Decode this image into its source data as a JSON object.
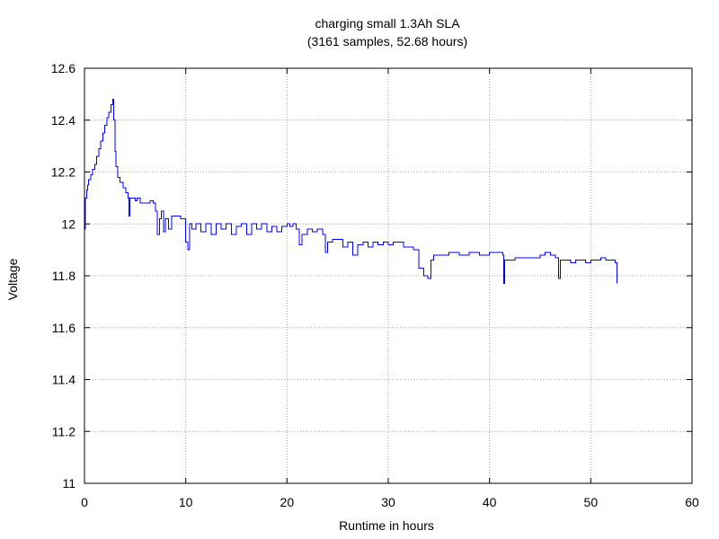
{
  "chart_data": {
    "type": "line",
    "title": "charging small 1.3Ah SLA",
    "subtitle": "(3161 samples, 52.68 hours)",
    "xlabel": "Runtime in hours",
    "ylabel": "Voltage",
    "xlim": [
      0,
      60
    ],
    "ylim": [
      11,
      12.6
    ],
    "xticks": [
      0,
      10,
      20,
      30,
      40,
      50,
      60
    ],
    "xtick_labels": [
      "0",
      "10",
      "20",
      "30",
      "40",
      "50",
      "60"
    ],
    "yticks": [
      11,
      11.2,
      11.4,
      11.6,
      11.8,
      12,
      12.2,
      12.4,
      12.6
    ],
    "ytick_labels": [
      "11",
      "11.2",
      "11.4",
      "11.6",
      "11.8",
      "12",
      "12.2",
      "12.4",
      "12.6"
    ],
    "grid": true,
    "legend": "none",
    "series": [
      {
        "color": "#0000ff",
        "points": [
          [
            0.0,
            11.98
          ],
          [
            0.1,
            12.1
          ],
          [
            0.2,
            12.13
          ],
          [
            0.3,
            12.15
          ],
          [
            0.4,
            12.17
          ],
          [
            0.6,
            12.19
          ],
          [
            0.8,
            12.21
          ],
          [
            1.0,
            12.23
          ],
          [
            1.2,
            12.26
          ],
          [
            1.4,
            12.29
          ],
          [
            1.6,
            12.32
          ],
          [
            1.8,
            12.35
          ],
          [
            2.0,
            12.38
          ],
          [
            2.2,
            12.41
          ],
          [
            2.4,
            12.43
          ],
          [
            2.6,
            12.46
          ],
          [
            2.8,
            12.48
          ],
          [
            2.9,
            12.4
          ],
          [
            3.0,
            12.28
          ],
          [
            3.1,
            12.22
          ],
          [
            3.3,
            12.18
          ],
          [
            3.5,
            12.16
          ],
          [
            3.8,
            12.14
          ],
          [
            4.1,
            12.12
          ],
          [
            4.3,
            12.1
          ],
          [
            4.4,
            12.03
          ],
          [
            4.5,
            12.1
          ],
          [
            5.0,
            12.09
          ],
          [
            5.2,
            12.1
          ],
          [
            5.5,
            12.08
          ],
          [
            6.0,
            12.08
          ],
          [
            6.5,
            12.09
          ],
          [
            6.8,
            12.08
          ],
          [
            7.0,
            12.05
          ],
          [
            7.2,
            11.96
          ],
          [
            7.4,
            12.02
          ],
          [
            7.6,
            12.05
          ],
          [
            7.8,
            11.97
          ],
          [
            8.0,
            12.02
          ],
          [
            8.3,
            11.98
          ],
          [
            8.6,
            12.03
          ],
          [
            9.0,
            12.03
          ],
          [
            9.5,
            12.02
          ],
          [
            9.8,
            12.02
          ],
          [
            10.0,
            11.93
          ],
          [
            10.2,
            11.9
          ],
          [
            10.4,
            12.0
          ],
          [
            10.6,
            11.98
          ],
          [
            11.0,
            12.0
          ],
          [
            11.5,
            11.97
          ],
          [
            12.0,
            12.0
          ],
          [
            12.5,
            11.96
          ],
          [
            13.0,
            12.0
          ],
          [
            13.5,
            11.98
          ],
          [
            14.0,
            12.0
          ],
          [
            14.5,
            11.96
          ],
          [
            15.0,
            11.99
          ],
          [
            15.5,
            12.0
          ],
          [
            16.0,
            11.96
          ],
          [
            16.5,
            12.0
          ],
          [
            17.0,
            11.98
          ],
          [
            17.5,
            12.0
          ],
          [
            18.0,
            11.97
          ],
          [
            18.5,
            11.99
          ],
          [
            19.0,
            11.97
          ],
          [
            19.5,
            11.99
          ],
          [
            20.0,
            12.0
          ],
          [
            20.3,
            11.99
          ],
          [
            20.6,
            12.0
          ],
          [
            20.9,
            11.98
          ],
          [
            21.0,
            11.98
          ],
          [
            21.2,
            11.92
          ],
          [
            21.5,
            11.96
          ],
          [
            22.0,
            11.98
          ],
          [
            22.5,
            11.97
          ],
          [
            23.0,
            11.98
          ],
          [
            23.5,
            11.96
          ],
          [
            23.8,
            11.89
          ],
          [
            24.0,
            11.93
          ],
          [
            24.5,
            11.94
          ],
          [
            25.0,
            11.94
          ],
          [
            25.5,
            11.91
          ],
          [
            26.0,
            11.93
          ],
          [
            26.5,
            11.88
          ],
          [
            27.0,
            11.92
          ],
          [
            27.5,
            11.93
          ],
          [
            28.0,
            11.91
          ],
          [
            28.5,
            11.93
          ],
          [
            29.0,
            11.92
          ],
          [
            29.5,
            11.93
          ],
          [
            30.0,
            11.92
          ],
          [
            30.5,
            11.93
          ],
          [
            31.0,
            11.93
          ],
          [
            31.5,
            11.91
          ],
          [
            32.0,
            11.91
          ],
          [
            32.5,
            11.9
          ],
          [
            33.0,
            11.83
          ],
          [
            33.5,
            11.8
          ],
          [
            33.9,
            11.79
          ],
          [
            34.2,
            11.86
          ],
          [
            34.5,
            11.88
          ],
          [
            35.0,
            11.88
          ],
          [
            36.0,
            11.89
          ],
          [
            37.0,
            11.88
          ],
          [
            38.0,
            11.89
          ],
          [
            39.0,
            11.88
          ],
          [
            40.0,
            11.89
          ],
          [
            41.0,
            11.89
          ],
          [
            41.3,
            11.88
          ],
          [
            41.4,
            11.77
          ],
          [
            41.5,
            11.86
          ],
          [
            42.0,
            11.86
          ],
          [
            42.5,
            11.87
          ],
          [
            43.0,
            11.87
          ],
          [
            44.0,
            11.87
          ],
          [
            45.0,
            11.88
          ],
          [
            45.5,
            11.89
          ],
          [
            46.0,
            11.88
          ],
          [
            46.5,
            11.87
          ],
          [
            46.8,
            11.79
          ],
          [
            47.0,
            11.86
          ],
          [
            47.5,
            11.86
          ],
          [
            48.0,
            11.85
          ],
          [
            48.5,
            11.86
          ],
          [
            49.0,
            11.86
          ],
          [
            49.5,
            11.85
          ],
          [
            50.0,
            11.86
          ],
          [
            50.5,
            11.86
          ],
          [
            51.0,
            11.87
          ],
          [
            51.5,
            11.86
          ],
          [
            52.0,
            11.86
          ],
          [
            52.4,
            11.85
          ],
          [
            52.6,
            11.77
          ]
        ]
      }
    ]
  }
}
